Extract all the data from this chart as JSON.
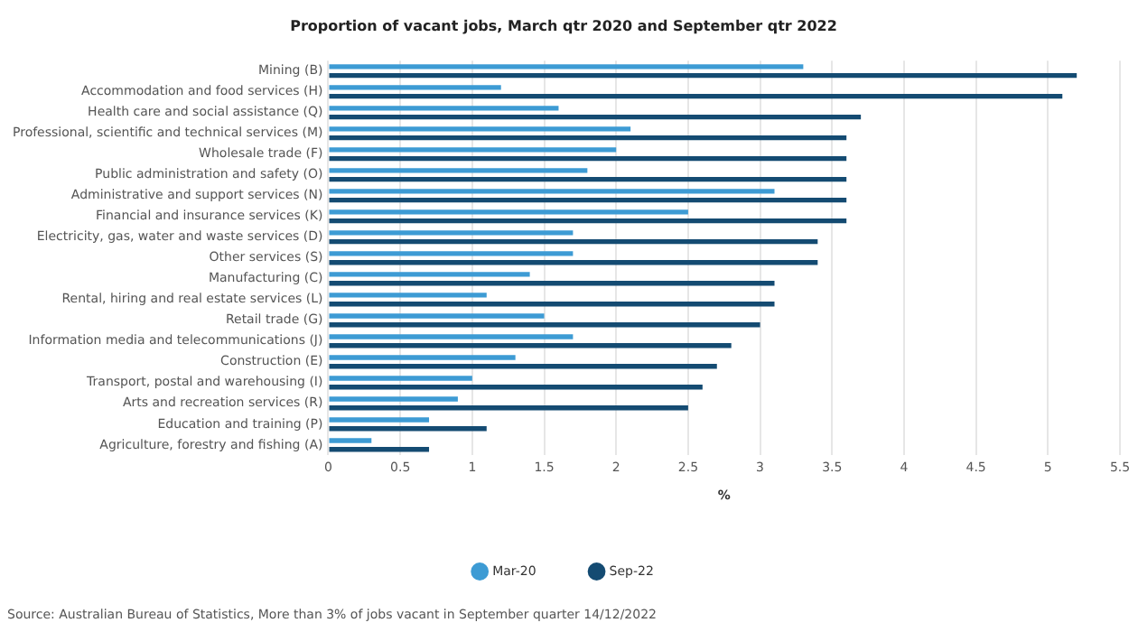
{
  "chart_data": {
    "type": "bar",
    "orientation": "horizontal",
    "title": "Proportion of vacant jobs, March qtr 2020 and September qtr 2022",
    "xlabel": "%",
    "categories": [
      "Mining (B)",
      "Accommodation and food services (H)",
      "Health care and social assistance (Q)",
      "Professional, scientific and technical services (M)",
      "Wholesale trade (F)",
      "Public administration and safety (O)",
      "Administrative and support services (N)",
      "Financial and insurance services (K)",
      "Electricity, gas, water and waste services (D)",
      "Other services (S)",
      "Manufacturing (C)",
      "Rental, hiring and real estate services (L)",
      "Retail trade (G)",
      "Information media and telecommunications (J)",
      "Construction (E)",
      "Transport, postal and warehousing (I)",
      "Arts and recreation services (R)",
      "Education and training (P)",
      "Agriculture, forestry and fishing (A)"
    ],
    "series": [
      {
        "name": "Mar-20",
        "color": "#3d9bd4",
        "values": [
          3.3,
          1.2,
          1.6,
          2.1,
          2.0,
          1.8,
          3.1,
          2.5,
          1.7,
          1.7,
          1.4,
          1.1,
          1.5,
          1.7,
          1.3,
          1.0,
          0.9,
          0.7,
          0.3
        ]
      },
      {
        "name": "Sep-22",
        "color": "#144b72",
        "values": [
          5.2,
          5.1,
          3.7,
          3.6,
          3.6,
          3.6,
          3.6,
          3.6,
          3.4,
          3.4,
          3.1,
          3.1,
          3.0,
          2.8,
          2.7,
          2.6,
          2.5,
          1.1,
          0.7
        ]
      }
    ],
    "xlim": [
      0,
      5.5
    ],
    "xticks": [
      0,
      0.5,
      1,
      1.5,
      2,
      2.5,
      3,
      3.5,
      4,
      4.5,
      5,
      5.5
    ],
    "grid": "x",
    "legend": "bottom",
    "marker": "circle",
    "annotations": [
      "Source: Australian Bureau of Statistics, More than 3% of jobs vacant in September quarter 14/12/2022"
    ]
  }
}
